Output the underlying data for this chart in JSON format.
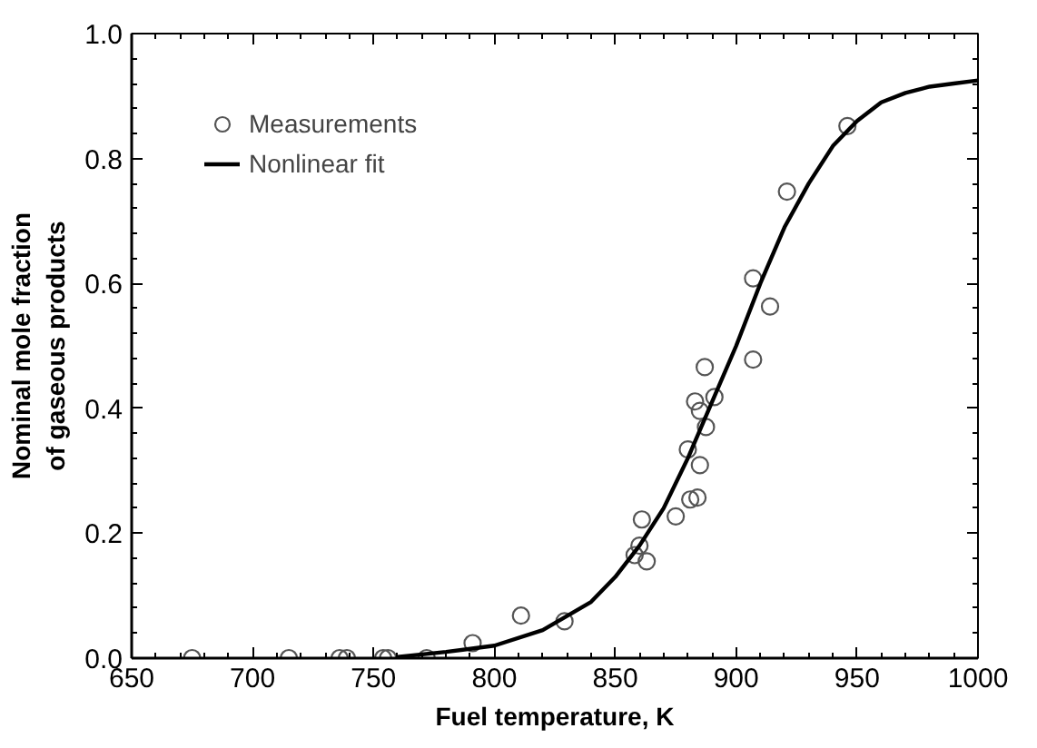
{
  "chart_data": {
    "type": "scatter",
    "xlabel": "Fuel temperature, K",
    "ylabel": "Nominal mole fraction\nof gaseous products",
    "xlim": [
      650,
      1000
    ],
    "ylim": [
      0,
      1
    ],
    "xticks": [
      650,
      700,
      750,
      800,
      850,
      900,
      950,
      1000
    ],
    "yticks": [
      {
        "value": 0,
        "label": "0.0"
      },
      0.2,
      0.4,
      0.6,
      0.8,
      {
        "value": 1,
        "label": "1.0"
      }
    ],
    "legend": "top left",
    "grid": false,
    "series": [
      {
        "name": "Measurements",
        "marker": "circle",
        "color": "#555555",
        "x": [
          675,
          715,
          736,
          739,
          754,
          756,
          772,
          791,
          811,
          829,
          858,
          861,
          863,
          860,
          875,
          881,
          884,
          885,
          880,
          885,
          887.5,
          883,
          891,
          887,
          907,
          914,
          907,
          921,
          946
        ],
        "values": [
          0,
          0,
          0,
          0,
          0,
          0,
          0,
          0.024,
          0.068,
          0.059,
          0.165,
          0.222,
          0.155,
          0.18,
          0.227,
          0.254,
          0.257,
          0.309,
          0.334,
          0.396,
          0.37,
          0.411,
          0.418,
          0.466,
          0.478,
          0.563,
          0.608,
          0.747,
          0.852
        ]
      },
      {
        "name": "Nonlinear fit",
        "type": "line",
        "line_style": "solid",
        "color": "#000000",
        "x": [
          760,
          780,
          800,
          820,
          840,
          850,
          860,
          870,
          880,
          890,
          900,
          910,
          920,
          930,
          940,
          950,
          960,
          970,
          980,
          990,
          1000
        ],
        "values": [
          0.002,
          0.01,
          0.02,
          0.045,
          0.09,
          0.13,
          0.18,
          0.24,
          0.32,
          0.41,
          0.5,
          0.6,
          0.69,
          0.76,
          0.82,
          0.86,
          0.89,
          0.905,
          0.915,
          0.92,
          0.925
        ]
      }
    ]
  }
}
